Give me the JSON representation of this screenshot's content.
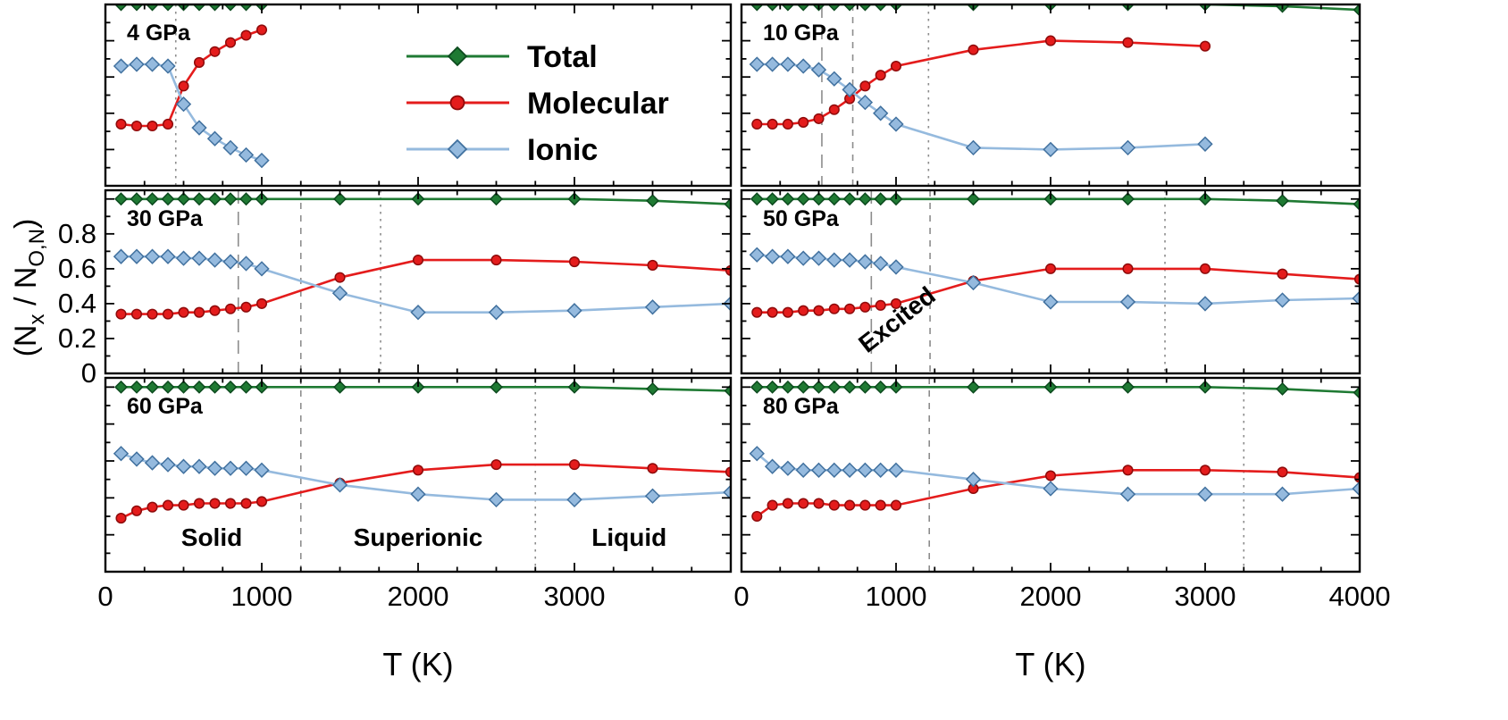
{
  "figure": {
    "xlabel": "T (K)",
    "ylabel_parts": [
      {
        "t": "(N"
      },
      {
        "t": "x",
        "sub": true
      },
      {
        "t": " / N"
      },
      {
        "t": "O,N",
        "sub": true
      },
      {
        "t": ")"
      }
    ],
    "legend": {
      "entries": [
        {
          "label": "Total",
          "series": "total",
          "marker": "diamond"
        },
        {
          "label": "Molecular",
          "series": "molecular",
          "marker": "circle"
        },
        {
          "label": "Ionic",
          "series": "ionic",
          "marker": "diamond"
        }
      ]
    },
    "colors": {
      "total": "#1f7a33",
      "total_edge": "#0c4a1e",
      "molecular": "#e41c1c",
      "molecular_edge": "#8e0b0b",
      "ionic": "#95bade",
      "ionic_edge": "#41719f",
      "boundary": "#8c8c8c",
      "axis": "#000000"
    }
  },
  "chart_data": [
    {
      "type": "line",
      "title": "4 GPa",
      "xlim": [
        0,
        4000
      ],
      "ylim": [
        0,
        1.0
      ],
      "xtick_major": 1000,
      "xtick_minor": 250,
      "ytick_major": 0.2,
      "ytick_minor": 0.1,
      "show_x_tick_labels": false,
      "show_y_tick_labels": false,
      "series": [
        {
          "name": "Total",
          "key": "total",
          "marker": "diamond",
          "x": [
            100,
            200,
            300,
            400,
            500,
            600,
            700,
            800,
            900,
            1000
          ],
          "y": [
            1,
            1,
            1,
            1,
            1,
            1,
            1,
            1,
            1,
            1
          ]
        },
        {
          "name": "Molecular",
          "key": "molecular",
          "marker": "circle",
          "x": [
            100,
            200,
            300,
            400,
            500,
            600,
            700,
            800,
            900,
            1000
          ],
          "y": [
            0.34,
            0.33,
            0.33,
            0.34,
            0.55,
            0.68,
            0.74,
            0.79,
            0.83,
            0.86
          ]
        },
        {
          "name": "Ionic",
          "key": "ionic",
          "marker": "diamond",
          "x": [
            100,
            200,
            300,
            400,
            500,
            600,
            700,
            800,
            900,
            1000
          ],
          "y": [
            0.66,
            0.67,
            0.67,
            0.66,
            0.45,
            0.32,
            0.26,
            0.21,
            0.17,
            0.14
          ]
        }
      ],
      "vlines": [
        {
          "x": 450,
          "style": "dotted"
        }
      ],
      "annotations": []
    },
    {
      "type": "line",
      "title": "10 GPa",
      "xlim": [
        0,
        4000
      ],
      "ylim": [
        0,
        1.0
      ],
      "xtick_major": 1000,
      "xtick_minor": 250,
      "ytick_major": 0.2,
      "ytick_minor": 0.1,
      "show_x_tick_labels": false,
      "show_y_tick_labels": false,
      "series": [
        {
          "name": "Total",
          "key": "total",
          "marker": "diamond",
          "x": [
            100,
            200,
            300,
            400,
            500,
            600,
            700,
            800,
            900,
            1000,
            1500,
            2000,
            2500,
            3000,
            3500,
            4000
          ],
          "y": [
            1,
            1,
            1,
            1,
            1,
            1,
            1,
            1,
            1,
            1,
            1,
            1,
            1,
            1,
            0.99,
            0.97
          ]
        },
        {
          "name": "Molecular",
          "key": "molecular",
          "marker": "circle",
          "x": [
            100,
            200,
            300,
            400,
            500,
            600,
            700,
            800,
            900,
            1000,
            1500,
            2000,
            2500,
            3000
          ],
          "y": [
            0.34,
            0.34,
            0.34,
            0.35,
            0.37,
            0.42,
            0.48,
            0.55,
            0.61,
            0.66,
            0.75,
            0.8,
            0.79,
            0.77
          ]
        },
        {
          "name": "Ionic",
          "key": "ionic",
          "marker": "diamond",
          "x": [
            100,
            200,
            300,
            400,
            500,
            600,
            700,
            800,
            900,
            1000,
            1500,
            2000,
            2500,
            3000
          ],
          "y": [
            0.67,
            0.67,
            0.67,
            0.66,
            0.64,
            0.59,
            0.53,
            0.46,
            0.4,
            0.34,
            0.21,
            0.2,
            0.21,
            0.23
          ]
        }
      ],
      "vlines": [
        {
          "x": 520,
          "style": "longdash"
        },
        {
          "x": 720,
          "style": "dash"
        },
        {
          "x": 1210,
          "style": "dotted"
        }
      ],
      "annotations": []
    },
    {
      "type": "line",
      "title": "30 GPa",
      "xlim": [
        0,
        4000
      ],
      "ylim": [
        0,
        1.05
      ],
      "xtick_major": 1000,
      "xtick_minor": 250,
      "ytick_major": 0.2,
      "ytick_minor": 0.1,
      "show_x_tick_labels": false,
      "show_y_tick_labels": true,
      "ytick_labels": [
        "0",
        "0.2",
        "0.4",
        "0.6",
        "0.8"
      ],
      "series": [
        {
          "name": "Total",
          "key": "total",
          "marker": "diamond",
          "x": [
            100,
            200,
            300,
            400,
            500,
            600,
            700,
            800,
            900,
            1000,
            1500,
            2000,
            2500,
            3000,
            3500,
            4000
          ],
          "y": [
            1,
            1,
            1,
            1,
            1,
            1,
            1,
            1,
            1,
            1,
            1,
            1,
            1,
            1,
            0.99,
            0.97
          ]
        },
        {
          "name": "Molecular",
          "key": "molecular",
          "marker": "circle",
          "x": [
            100,
            200,
            300,
            400,
            500,
            600,
            700,
            800,
            900,
            1000,
            1500,
            2000,
            2500,
            3000,
            3500,
            4000
          ],
          "y": [
            0.34,
            0.34,
            0.34,
            0.34,
            0.35,
            0.35,
            0.36,
            0.37,
            0.38,
            0.4,
            0.55,
            0.65,
            0.65,
            0.64,
            0.62,
            0.59
          ]
        },
        {
          "name": "Ionic",
          "key": "ionic",
          "marker": "diamond",
          "x": [
            100,
            200,
            300,
            400,
            500,
            600,
            700,
            800,
            900,
            1000,
            1500,
            2000,
            2500,
            3000,
            3500,
            4000
          ],
          "y": [
            0.67,
            0.67,
            0.67,
            0.67,
            0.66,
            0.66,
            0.65,
            0.64,
            0.63,
            0.6,
            0.46,
            0.35,
            0.35,
            0.36,
            0.38,
            0.4
          ]
        }
      ],
      "vlines": [
        {
          "x": 850,
          "style": "longdash"
        },
        {
          "x": 1250,
          "style": "dash"
        },
        {
          "x": 1760,
          "style": "dotted"
        }
      ],
      "annotations": []
    },
    {
      "type": "line",
      "title": "50 GPa",
      "xlim": [
        0,
        4000
      ],
      "ylim": [
        0,
        1.05
      ],
      "xtick_major": 1000,
      "xtick_minor": 250,
      "ytick_major": 0.2,
      "ytick_minor": 0.1,
      "show_x_tick_labels": false,
      "show_y_tick_labels": false,
      "series": [
        {
          "name": "Total",
          "key": "total",
          "marker": "diamond",
          "x": [
            100,
            200,
            300,
            400,
            500,
            600,
            700,
            800,
            900,
            1000,
            1500,
            2000,
            2500,
            3000,
            3500,
            4000
          ],
          "y": [
            1,
            1,
            1,
            1,
            1,
            1,
            1,
            1,
            1,
            1,
            1,
            1,
            1,
            1,
            0.99,
            0.97
          ]
        },
        {
          "name": "Molecular",
          "key": "molecular",
          "marker": "circle",
          "x": [
            100,
            200,
            300,
            400,
            500,
            600,
            700,
            800,
            900,
            1000,
            1500,
            2000,
            2500,
            3000,
            3500,
            4000
          ],
          "y": [
            0.35,
            0.35,
            0.35,
            0.36,
            0.36,
            0.37,
            0.37,
            0.38,
            0.39,
            0.4,
            0.53,
            0.6,
            0.6,
            0.6,
            0.57,
            0.54
          ]
        },
        {
          "name": "Ionic",
          "key": "ionic",
          "marker": "diamond",
          "x": [
            100,
            200,
            300,
            400,
            500,
            600,
            700,
            800,
            900,
            1000,
            1500,
            2000,
            2500,
            3000,
            3500,
            4000
          ],
          "y": [
            0.68,
            0.67,
            0.67,
            0.66,
            0.66,
            0.65,
            0.65,
            0.64,
            0.63,
            0.61,
            0.52,
            0.41,
            0.41,
            0.4,
            0.42,
            0.43
          ]
        }
      ],
      "vlines": [
        {
          "x": 840,
          "style": "longdash"
        },
        {
          "x": 1220,
          "style": "dash"
        },
        {
          "x": 2740,
          "style": "dotted"
        }
      ],
      "annotations": [
        {
          "text": "Excited",
          "x": 1040,
          "y": 0.27,
          "rotate": -38
        }
      ]
    },
    {
      "type": "line",
      "title": "60 GPa",
      "xlim": [
        0,
        4000
      ],
      "ylim": [
        0,
        1.05
      ],
      "xtick_major": 1000,
      "xtick_minor": 250,
      "ytick_major": 0.2,
      "ytick_minor": 0.1,
      "show_x_tick_labels": true,
      "show_y_tick_labels": false,
      "xtick_labels": [
        "0",
        "1000",
        "2000",
        "3000"
      ],
      "series": [
        {
          "name": "Total",
          "key": "total",
          "marker": "diamond",
          "x": [
            100,
            200,
            300,
            400,
            500,
            600,
            700,
            800,
            900,
            1000,
            1500,
            2000,
            2500,
            3000,
            3500,
            4000
          ],
          "y": [
            1,
            1,
            1,
            1,
            1,
            1,
            1,
            1,
            1,
            1,
            1,
            1,
            1,
            1,
            0.99,
            0.98
          ]
        },
        {
          "name": "Molecular",
          "key": "molecular",
          "marker": "circle",
          "x": [
            100,
            200,
            300,
            400,
            500,
            600,
            700,
            800,
            900,
            1000,
            1500,
            2000,
            2500,
            3000,
            3500,
            4000
          ],
          "y": [
            0.29,
            0.33,
            0.35,
            0.36,
            0.36,
            0.37,
            0.37,
            0.37,
            0.37,
            0.38,
            0.48,
            0.55,
            0.58,
            0.58,
            0.56,
            0.54
          ]
        },
        {
          "name": "Ionic",
          "key": "ionic",
          "marker": "diamond",
          "x": [
            100,
            200,
            300,
            400,
            500,
            600,
            700,
            800,
            900,
            1000,
            1500,
            2000,
            2500,
            3000,
            3500,
            4000
          ],
          "y": [
            0.64,
            0.61,
            0.59,
            0.58,
            0.57,
            0.57,
            0.56,
            0.56,
            0.56,
            0.55,
            0.47,
            0.42,
            0.39,
            0.39,
            0.41,
            0.43
          ]
        }
      ],
      "vlines": [
        {
          "x": 1250,
          "style": "dash"
        },
        {
          "x": 2750,
          "style": "dotted"
        }
      ],
      "annotations": [
        {
          "text": "Solid",
          "x": 680,
          "y": 0.14
        },
        {
          "text": "Superionic",
          "x": 2000,
          "y": 0.14
        },
        {
          "text": "Liquid",
          "x": 3350,
          "y": 0.14
        }
      ]
    },
    {
      "type": "line",
      "title": "80 GPa",
      "xlim": [
        0,
        4000
      ],
      "ylim": [
        0,
        1.05
      ],
      "xtick_major": 1000,
      "xtick_minor": 250,
      "ytick_major": 0.2,
      "ytick_minor": 0.1,
      "show_x_tick_labels": true,
      "show_y_tick_labels": false,
      "xtick_labels": [
        "0",
        "1000",
        "2000",
        "3000",
        "4000"
      ],
      "series": [
        {
          "name": "Total",
          "key": "total",
          "marker": "diamond",
          "x": [
            100,
            200,
            300,
            400,
            500,
            600,
            700,
            800,
            900,
            1000,
            1500,
            2000,
            2500,
            3000,
            3500,
            4000
          ],
          "y": [
            1,
            1,
            1,
            1,
            1,
            1,
            1,
            1,
            1,
            1,
            1,
            1,
            1,
            1,
            0.99,
            0.97
          ]
        },
        {
          "name": "Molecular",
          "key": "molecular",
          "marker": "circle",
          "x": [
            100,
            200,
            300,
            400,
            500,
            600,
            700,
            800,
            900,
            1000,
            1500,
            2000,
            2500,
            3000,
            3500,
            4000
          ],
          "y": [
            0.3,
            0.36,
            0.37,
            0.37,
            0.37,
            0.36,
            0.36,
            0.36,
            0.36,
            0.36,
            0.45,
            0.52,
            0.55,
            0.55,
            0.54,
            0.51
          ]
        },
        {
          "name": "Ionic",
          "key": "ionic",
          "marker": "diamond",
          "x": [
            100,
            200,
            300,
            400,
            500,
            600,
            700,
            800,
            900,
            1000,
            1500,
            2000,
            2500,
            3000,
            3500,
            4000
          ],
          "y": [
            0.64,
            0.57,
            0.56,
            0.55,
            0.55,
            0.55,
            0.55,
            0.55,
            0.55,
            0.55,
            0.5,
            0.45,
            0.42,
            0.42,
            0.42,
            0.45
          ]
        }
      ],
      "vlines": [
        {
          "x": 1215,
          "style": "dash"
        },
        {
          "x": 3250,
          "style": "dotted"
        }
      ],
      "annotations": []
    }
  ]
}
